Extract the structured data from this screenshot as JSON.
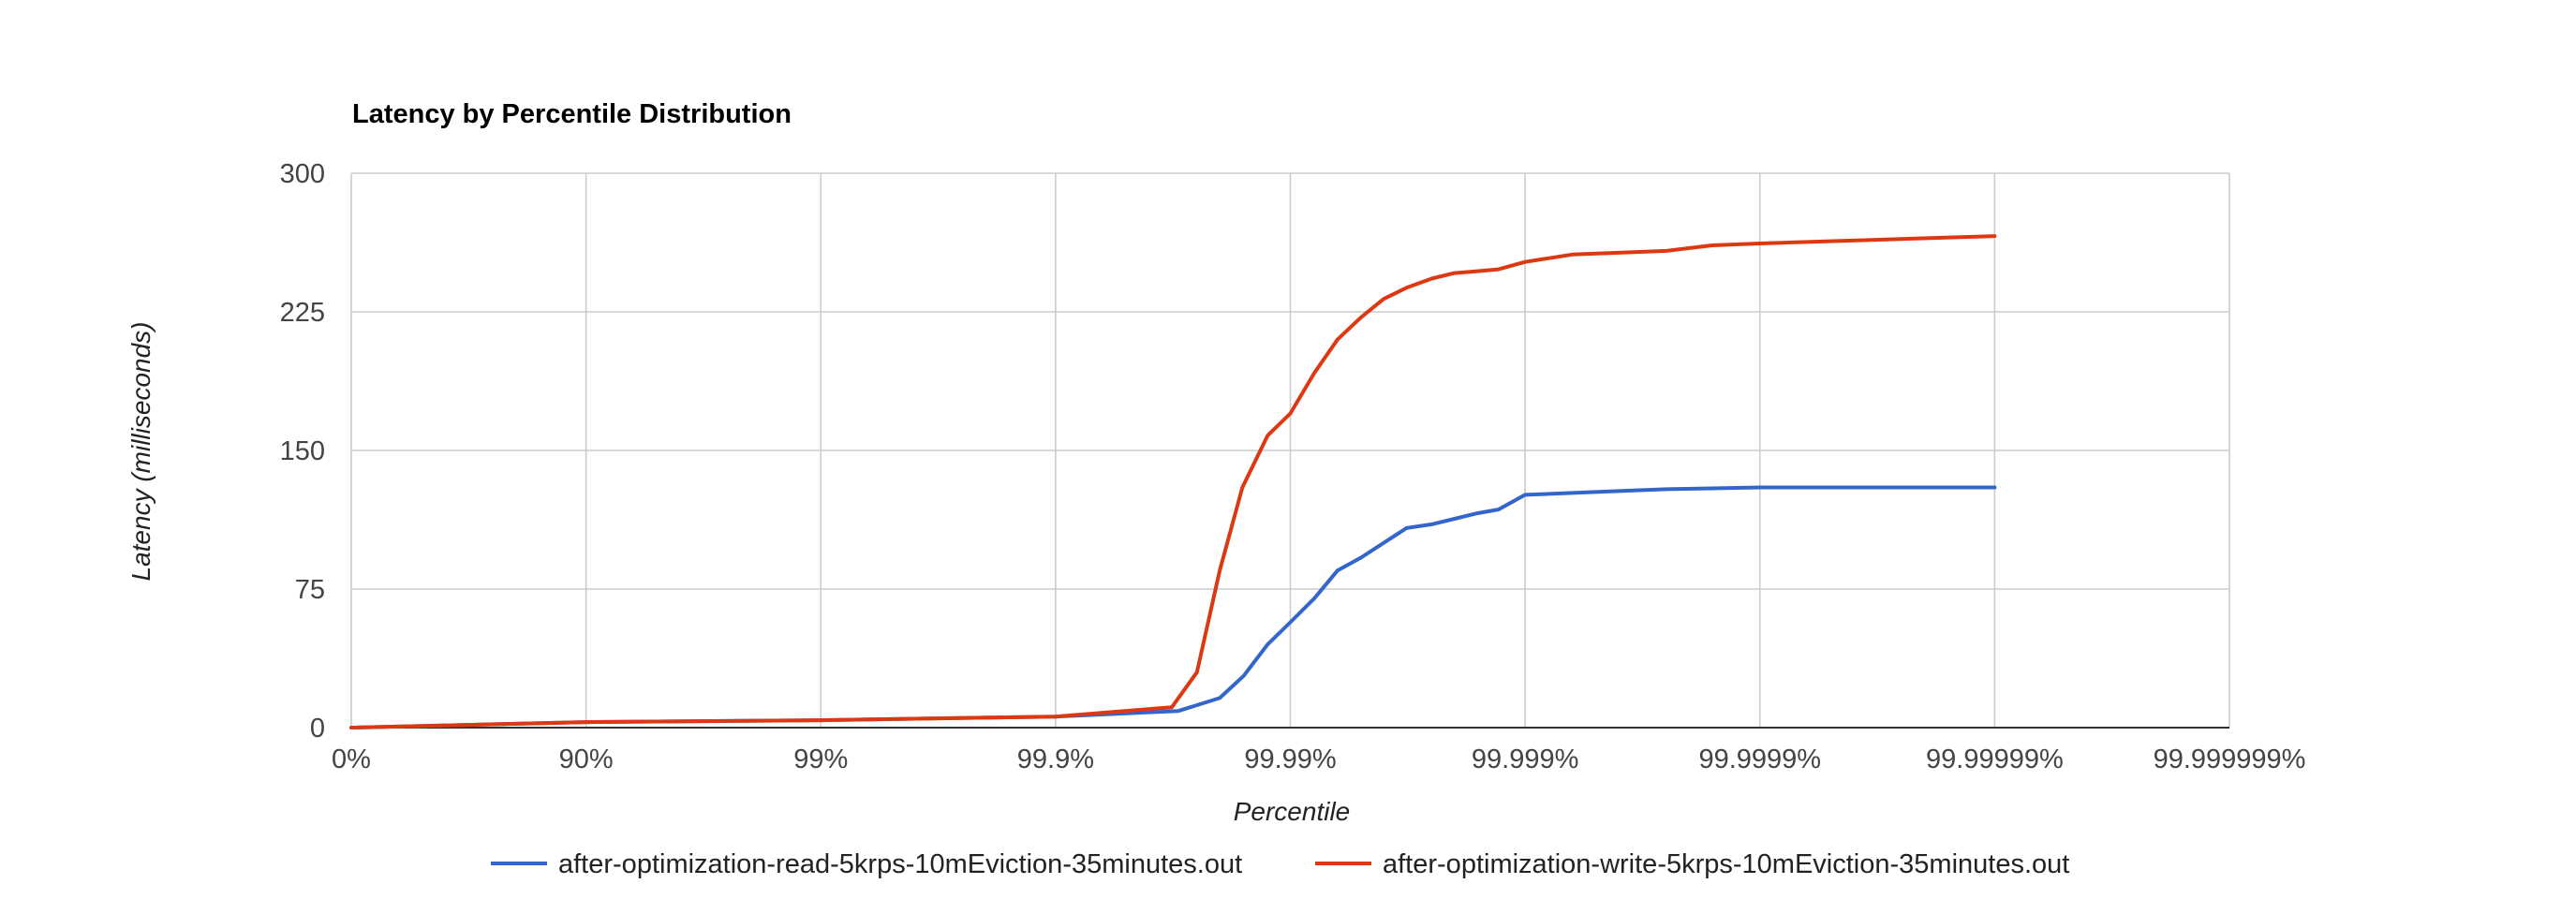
{
  "chart_data": {
    "type": "line",
    "title": "Latency by Percentile Distribution",
    "xlabel": "Percentile",
    "ylabel": "Latency (milliseconds)",
    "x_scale": "log",
    "x_scale_note": "position is log10(1/(1-p)); each tick is one more nine",
    "x_ticks": [
      "0%",
      "90%",
      "99%",
      "99.9%",
      "99.99%",
      "99.999%",
      "99.9999%",
      "99.99999%",
      "99.999999%"
    ],
    "xlim": [
      "0%",
      "99.999999%"
    ],
    "y_ticks": [
      0,
      75,
      150,
      225,
      300
    ],
    "ylim": [
      0,
      300
    ],
    "grid": true,
    "legend_position": "bottom",
    "series": [
      {
        "name": "after-optimization-read-5krps-10mEviction-35minutes.out",
        "color": "#3366cc",
        "x": [
          "0%",
          "90%",
          "99%",
          "99.9%",
          "99.97%",
          "99.98%",
          "99.9842%",
          "99.9875%",
          "99.99%",
          "99.9921%",
          "99.9937%",
          "99.995%",
          "99.996%",
          "99.9968%",
          "99.9975%",
          "99.998%",
          "99.9984%",
          "99.9987%",
          "99.999%",
          "99.99937%",
          "99.9996%",
          "99.99975%",
          "99.99984%",
          "99.9999%",
          "99.99999%"
        ],
        "y": [
          0,
          3,
          4,
          6,
          9,
          16,
          28,
          45,
          57,
          70,
          85,
          92,
          100,
          108,
          110,
          113,
          116,
          118,
          126,
          127,
          128,
          129,
          129.5,
          130,
          130
        ]
      },
      {
        "name": "after-optimization-write-5krps-10mEviction-35minutes.out",
        "color": "#dc3912",
        "x": [
          "0%",
          "90%",
          "99%",
          "99.9%",
          "99.968%",
          "99.975%",
          "99.98%",
          "99.984%",
          "99.9875%",
          "99.99%",
          "99.9921%",
          "99.9937%",
          "99.995%",
          "99.996%",
          "99.9968%",
          "99.9975%",
          "99.998%",
          "99.9984%",
          "99.9987%",
          "99.999%",
          "99.99937%",
          "99.9996%",
          "99.99975%",
          "99.99984%",
          "99.9999%",
          "99.99999%"
        ],
        "y": [
          0,
          3,
          4,
          6,
          11,
          30,
          85,
          130,
          158,
          170,
          192,
          210,
          222,
          232,
          238,
          243,
          246,
          247,
          248,
          252,
          256,
          257,
          258,
          261,
          262,
          266
        ]
      }
    ]
  }
}
